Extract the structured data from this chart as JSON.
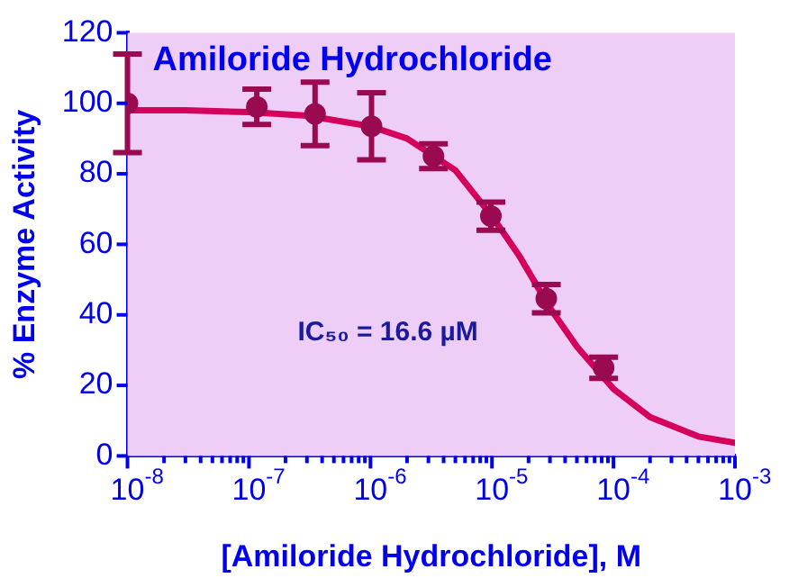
{
  "chart_data": {
    "type": "scatter",
    "title": "Amiloride Hydrochloride",
    "xlabel": "[Amiloride Hydrochloride], M",
    "ylabel": "% Enzyme Activity",
    "annotations": [
      "IC₅₀ = 16.6 µM"
    ],
    "log": "x",
    "grid": false,
    "legend": false,
    "xlim": [
      1e-08,
      0.001
    ],
    "xticks": [
      {
        "value": 1e-08,
        "label": "10$^{-8}$"
      },
      {
        "value": 2e-08,
        "label": null
      },
      {
        "value": 3e-08,
        "label": null
      },
      {
        "value": 4e-08,
        "label": null
      },
      {
        "value": 5e-08,
        "label": null
      },
      {
        "value": 6e-08,
        "label": null
      },
      {
        "value": 7e-08,
        "label": null
      },
      {
        "value": 8e-08,
        "label": null
      },
      {
        "value": 9e-08,
        "label": null
      },
      {
        "value": 1e-07,
        "label": "10$^{-7}$"
      },
      {
        "value": 2e-07,
        "label": null
      },
      {
        "value": 3e-07,
        "label": null
      },
      {
        "value": 4e-07,
        "label": null
      },
      {
        "value": 5e-07,
        "label": null
      },
      {
        "value": 6e-07,
        "label": null
      },
      {
        "value": 7e-07,
        "label": null
      },
      {
        "value": 8e-07,
        "label": null
      },
      {
        "value": 9e-07,
        "label": null
      },
      {
        "value": 1e-06,
        "label": "10$^{-6}$"
      },
      {
        "value": 2e-06,
        "label": null
      },
      {
        "value": 3e-06,
        "label": null
      },
      {
        "value": 4e-06,
        "label": null
      },
      {
        "value": 5e-06,
        "label": null
      },
      {
        "value": 6e-06,
        "label": null
      },
      {
        "value": 7e-06,
        "label": null
      },
      {
        "value": 8e-06,
        "label": null
      },
      {
        "value": 9e-06,
        "label": null
      },
      {
        "value": 1e-05,
        "label": "10$^{-5}$"
      },
      {
        "value": 2e-05,
        "label": null
      },
      {
        "value": 3e-05,
        "label": null
      },
      {
        "value": 4e-05,
        "label": null
      },
      {
        "value": 5e-05,
        "label": null
      },
      {
        "value": 6e-05,
        "label": null
      },
      {
        "value": 7e-05,
        "label": null
      },
      {
        "value": 8e-05,
        "label": null
      },
      {
        "value": 9e-05,
        "label": null
      },
      {
        "value": 0.0001,
        "label": "10$^{-4}$"
      },
      {
        "value": 0.0002,
        "label": null
      },
      {
        "value": 0.0003,
        "label": null
      },
      {
        "value": 0.0004,
        "label": null
      },
      {
        "value": 0.0005,
        "label": null
      },
      {
        "value": 0.0006,
        "label": null
      },
      {
        "value": 0.0007,
        "label": null
      },
      {
        "value": 0.0008,
        "label": null
      },
      {
        "value": 0.0009,
        "label": null
      },
      {
        "value": 0.001,
        "label": "10$^{-3}$"
      }
    ],
    "ylim": [
      0,
      120
    ],
    "yticks": [
      0,
      20,
      40,
      60,
      80,
      100,
      120
    ],
    "series": [
      {
        "marker": "circle",
        "color": "#990a50",
        "x": [
          1e-08,
          1.16e-07,
          3.5e-07,
          1.02e-06,
          3.3e-06,
          9.8e-06,
          2.8e-05,
          8.3e-05
        ],
        "values": [
          100,
          99,
          97,
          93.5,
          85,
          68,
          44.6,
          25
        ],
        "errors": [
          14,
          5,
          9,
          9.5,
          3.5,
          4,
          4,
          3
        ]
      },
      {
        "type": "line",
        "marker": "none",
        "color": "#d4005c",
        "x": [
          1e-08,
          3e-08,
          1e-07,
          3e-07,
          1e-06,
          2e-06,
          5e-06,
          1e-05,
          1.66e-05,
          3e-05,
          5e-05,
          0.0001,
          0.0002,
          0.0005,
          0.001
        ],
        "values": [
          98,
          98,
          97.5,
          96.5,
          93.5,
          90,
          81,
          68,
          57,
          42,
          31,
          19,
          11,
          5.5,
          3.7
        ]
      }
    ]
  }
}
